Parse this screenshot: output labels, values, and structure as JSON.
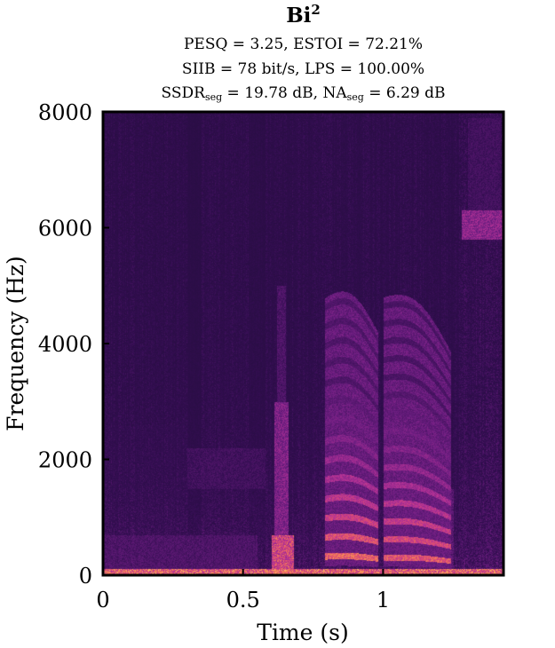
{
  "chart_data": {
    "type": "heatmap",
    "title_base": "Bi",
    "title_sup": "2",
    "metrics": {
      "pesq": "PESQ = 3.25, ESTOI = 72.21%",
      "siib": "SIIB = 78 bit/s, LPS = 100.00%",
      "ssdr_prefix": "SSDR",
      "ssdr_sub": "seg",
      "ssdr_mid": " = 19.78 dB, NA",
      "na_sub": "seg",
      "na_suffix": " = 6.29 dB"
    },
    "xlabel": "Time (s)",
    "ylabel": "Frequency (Hz)",
    "xlim": [
      0,
      1.43
    ],
    "ylim": [
      0,
      8000
    ],
    "x_ticks": [
      0,
      0.5,
      1
    ],
    "x_tick_labels": [
      "0",
      "0.5",
      "1"
    ],
    "y_ticks": [
      0,
      2000,
      4000,
      6000,
      8000
    ],
    "y_tick_labels": [
      "0",
      "2000",
      "4000",
      "6000",
      "8000"
    ],
    "colormap": "inferno-like",
    "colors": {
      "background": "#1a0b30",
      "low": "#2a0f4a",
      "mid": "#7a2a8f",
      "high": "#d94a6a",
      "peak": "#ffd27a"
    },
    "energy_regions": [
      {
        "t0": 0.0,
        "t1": 1.43,
        "f0": 0,
        "f1": 120,
        "level": 0.95
      },
      {
        "t0": 0.0,
        "t1": 0.55,
        "f0": 120,
        "f1": 700,
        "level": 0.35
      },
      {
        "t0": 0.0,
        "t1": 0.3,
        "f0": 700,
        "f1": 2600,
        "level": 0.2
      },
      {
        "t0": 0.3,
        "t1": 0.58,
        "f0": 1500,
        "f1": 2200,
        "level": 0.3
      },
      {
        "t0": 0.6,
        "t1": 0.68,
        "f0": 0,
        "f1": 700,
        "level": 0.85
      },
      {
        "t0": 0.61,
        "t1": 0.66,
        "f0": 700,
        "f1": 3000,
        "level": 0.55
      },
      {
        "t0": 0.62,
        "t1": 0.65,
        "f0": 3000,
        "f1": 5000,
        "level": 0.35
      },
      {
        "t0": 1.28,
        "t1": 1.43,
        "f0": 5800,
        "f1": 6300,
        "level": 0.6
      },
      {
        "t0": 1.3,
        "t1": 1.42,
        "f0": 6300,
        "f1": 7900,
        "level": 0.3
      },
      {
        "t0": 1.05,
        "t1": 1.25,
        "f0": 0,
        "f1": 1500,
        "level": 0.4
      }
    ],
    "harmonic_blocks": [
      {
        "t0": 0.79,
        "t1": 0.98,
        "f0_start": 330,
        "f0_end": 290,
        "harmonics": 14,
        "level": 0.95
      },
      {
        "t0": 1.0,
        "t1": 1.24,
        "f0_start": 310,
        "f0_end": 250,
        "harmonics": 15,
        "level": 0.9
      }
    ]
  }
}
